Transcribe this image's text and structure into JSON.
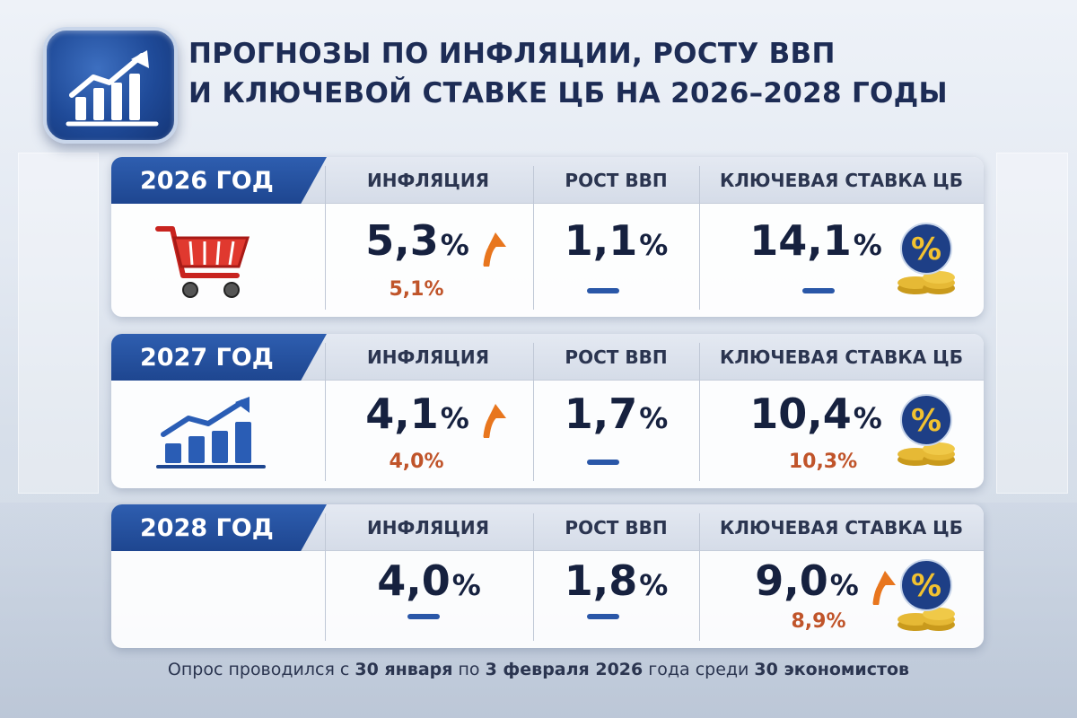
{
  "title_line1": "ПРОГНОЗЫ ПО ИНФЛЯЦИИ, РОСТУ ВВП",
  "title_line2": "И КЛЮЧЕВОЙ СТАВКЕ ЦБ НА 2026–2028 ГОДЫ",
  "columns": {
    "inflation": "ИНФЛЯЦИЯ",
    "gdp": "РОСТ ВВП",
    "rate": "КЛЮЧЕВАЯ СТАВКА ЦБ"
  },
  "percent_sign": "%",
  "rows": [
    {
      "year": "2026 ГОД",
      "inflation": "5,3",
      "inflation_prev": "5,1%",
      "gdp": "1,1",
      "rate": "14,1"
    },
    {
      "year": "2027 ГОД",
      "inflation": "4,1",
      "inflation_prev": "4,0%",
      "gdp": "1,7",
      "rate": "10,4",
      "rate_prev": "10,3%"
    },
    {
      "year": "2028 ГОД",
      "inflation": "4,0",
      "gdp": "1,8",
      "rate": "9,0",
      "rate_prev": "8,9%"
    }
  ],
  "footer": {
    "part1": "Опрос проводился с ",
    "date_from": "30 января",
    "part2": " по ",
    "date_to": "3 февраля 2026",
    "part3": " года среди ",
    "count": "30 экономистов"
  },
  "chart_data": {
    "type": "table",
    "title": "ПРОГНОЗЫ ПО ИНФЛЯЦИИ, РОСТУ ВВП И КЛЮЧЕВОЙ СТАВКЕ ЦБ НА 2026–2028 ГОДЫ",
    "categories": [
      "2026 ГОД",
      "2027 ГОД",
      "2028 ГОД"
    ],
    "series": [
      {
        "name": "ИНФЛЯЦИЯ",
        "values": [
          5.3,
          4.1,
          4.0
        ],
        "previous": [
          5.1,
          4.0,
          null
        ]
      },
      {
        "name": "РОСТ ВВП",
        "values": [
          1.1,
          1.7,
          1.8
        ],
        "previous": [
          null,
          null,
          null
        ]
      },
      {
        "name": "КЛЮЧЕВАЯ СТАВКА ЦБ",
        "values": [
          14.1,
          10.4,
          9.0
        ],
        "previous": [
          null,
          10.3,
          8.9
        ]
      }
    ]
  },
  "colors": {
    "accent_blue": "#1e4690",
    "prev_value_orange": "#c0542a",
    "arrow_orange": "#e8761e",
    "text_dark": "#16213f"
  },
  "icons": [
    "chart-growth-icon",
    "shopping-cart-icon",
    "bar-chart-icon",
    "percent-coin-icon",
    "arrow-up-icon"
  ]
}
